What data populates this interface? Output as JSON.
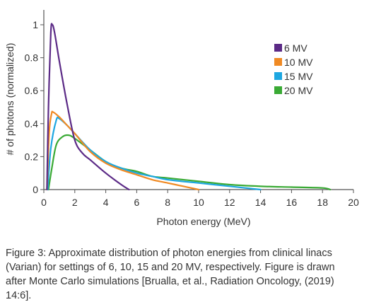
{
  "chart_data": {
    "type": "line",
    "title": "",
    "xlabel": "Photon energy (MeV)",
    "ylabel": "# of photons (normalized)",
    "xlim": [
      0,
      20
    ],
    "ylim": [
      0,
      1.05
    ],
    "xticks": [
      "0",
      "2",
      "4",
      "6",
      "8",
      "10",
      "12",
      "14",
      "16",
      "18",
      "20"
    ],
    "yticks": [
      "0",
      "0.2",
      "0.4",
      "0.6",
      "0.8",
      "1"
    ],
    "grid": false,
    "legend_position": "top-right",
    "series": [
      {
        "name": "6 MV",
        "color": "#5b2a86",
        "points": [
          [
            0.2,
            0.0
          ],
          [
            0.3,
            0.5
          ],
          [
            0.45,
            0.95
          ],
          [
            0.55,
            1.0
          ],
          [
            0.7,
            0.95
          ],
          [
            1.0,
            0.78
          ],
          [
            1.5,
            0.52
          ],
          [
            2.0,
            0.3
          ],
          [
            2.5,
            0.22
          ],
          [
            3.0,
            0.18
          ],
          [
            4.0,
            0.1
          ],
          [
            5.0,
            0.03
          ],
          [
            5.5,
            0.0
          ]
        ]
      },
      {
        "name": "10 MV",
        "color": "#f08a24",
        "points": [
          [
            0.2,
            0.0
          ],
          [
            0.35,
            0.35
          ],
          [
            0.5,
            0.46
          ],
          [
            0.6,
            0.47
          ],
          [
            1.0,
            0.44
          ],
          [
            1.5,
            0.39
          ],
          [
            2.0,
            0.34
          ],
          [
            3.0,
            0.23
          ],
          [
            4.0,
            0.16
          ],
          [
            5.0,
            0.12
          ],
          [
            6.0,
            0.09
          ],
          [
            7.0,
            0.06
          ],
          [
            8.0,
            0.04
          ],
          [
            9.0,
            0.02
          ],
          [
            10.0,
            0.0
          ]
        ]
      },
      {
        "name": "15 MV",
        "color": "#1ea7e1",
        "points": [
          [
            0.25,
            0.0
          ],
          [
            0.45,
            0.25
          ],
          [
            0.8,
            0.42
          ],
          [
            1.0,
            0.43
          ],
          [
            1.5,
            0.39
          ],
          [
            2.0,
            0.34
          ],
          [
            3.0,
            0.24
          ],
          [
            4.0,
            0.17
          ],
          [
            5.0,
            0.13
          ],
          [
            6.0,
            0.1
          ],
          [
            7.0,
            0.08
          ],
          [
            8.0,
            0.06
          ],
          [
            10.0,
            0.04
          ],
          [
            12.0,
            0.02
          ],
          [
            14.0,
            0.0
          ]
        ]
      },
      {
        "name": "20 MV",
        "color": "#3aaa35",
        "points": [
          [
            0.3,
            0.0
          ],
          [
            0.5,
            0.12
          ],
          [
            0.8,
            0.27
          ],
          [
            1.2,
            0.32
          ],
          [
            1.6,
            0.33
          ],
          [
            2.0,
            0.31
          ],
          [
            3.0,
            0.24
          ],
          [
            4.0,
            0.17
          ],
          [
            5.0,
            0.13
          ],
          [
            6.0,
            0.11
          ],
          [
            7.0,
            0.08
          ],
          [
            8.0,
            0.07
          ],
          [
            10.0,
            0.05
          ],
          [
            12.0,
            0.03
          ],
          [
            14.0,
            0.02
          ],
          [
            16.0,
            0.015
          ],
          [
            18.0,
            0.01
          ],
          [
            18.5,
            0.0
          ]
        ]
      }
    ]
  },
  "caption": "Figure 3: Approximate distribution of photon energies from clinical linacs (Varian) for settings of 6, 10, 15 and 20 MV, respectively. Figure is drawn after Monte Carlo simulations [Brualla, et al., Radiation Oncology, (2019) 14:6]."
}
